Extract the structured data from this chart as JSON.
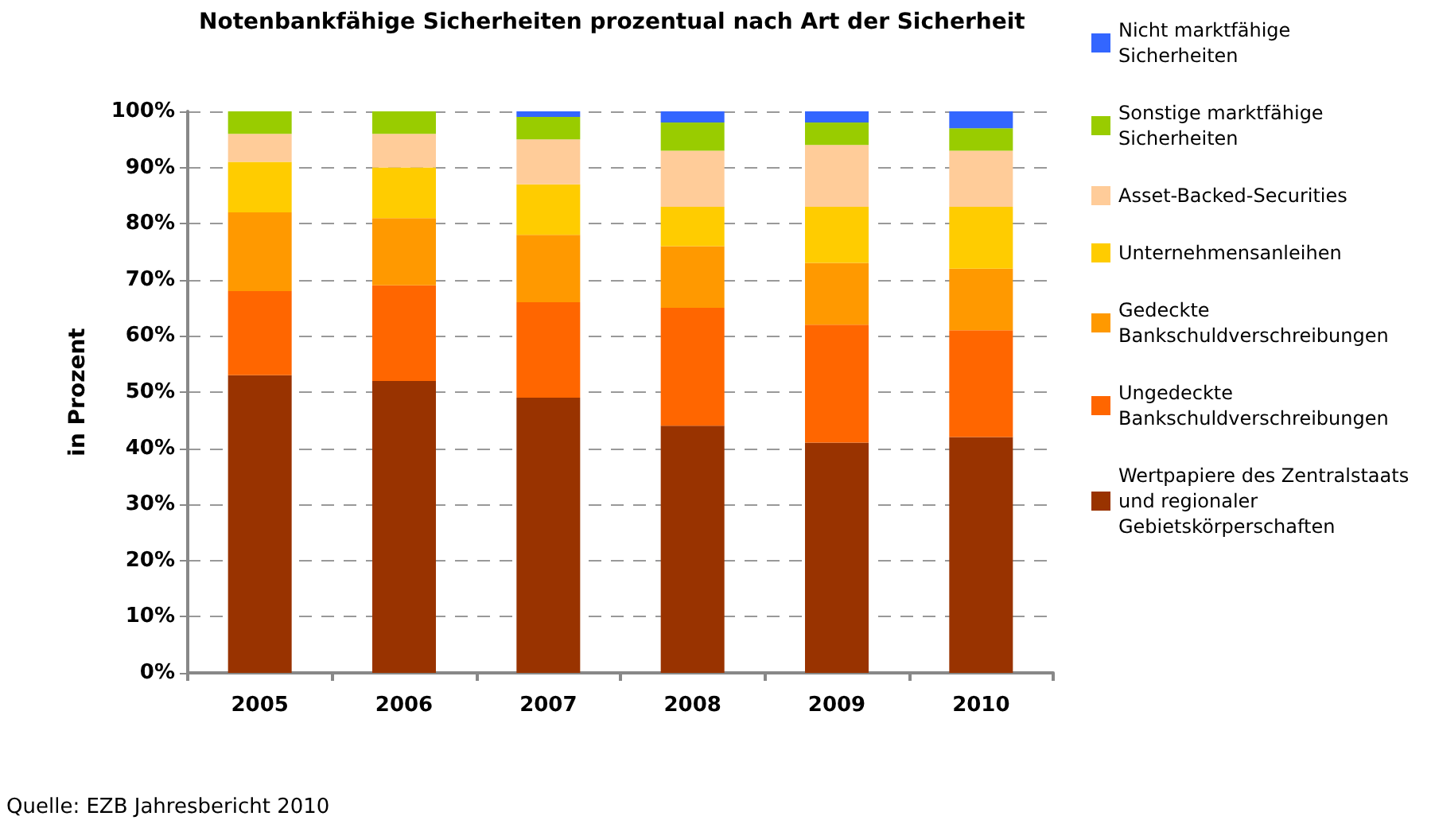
{
  "chart_data": {
    "type": "bar",
    "stacked": true,
    "title": "Notenbankfähige Sicherheiten prozentual nach Art der Sicherheit",
    "ylabel": "in Prozent",
    "categories": [
      "2005",
      "2006",
      "2007",
      "2008",
      "2009",
      "2010"
    ],
    "series": [
      {
        "name": "Wertpapiere des Zentralstaats und regionaler Gebietskörperschaften",
        "color": "#993300",
        "values": [
          53,
          52,
          49,
          44,
          41,
          42
        ]
      },
      {
        "name": "Ungedeckte Bankschuldverschreibungen",
        "color": "#ff6600",
        "values": [
          15,
          17,
          17,
          21,
          21,
          19
        ]
      },
      {
        "name": "Gedeckte Bankschuldverschreibungen",
        "color": "#ff9900",
        "values": [
          14,
          12,
          12,
          11,
          11,
          11
        ]
      },
      {
        "name": "Unternehmensanleihen",
        "color": "#ffcc00",
        "values": [
          9,
          9,
          9,
          7,
          10,
          11
        ]
      },
      {
        "name": "Asset-Backed-Securities",
        "color": "#ffcc99",
        "values": [
          5,
          6,
          8,
          10,
          11,
          10
        ]
      },
      {
        "name": "Sonstige marktfähige Sicherheiten",
        "color": "#99cc00",
        "values": [
          4,
          4,
          4,
          5,
          4,
          4
        ]
      },
      {
        "name": "Nicht marktfähige Sicherheiten",
        "color": "#3366ff",
        "values": [
          0,
          0,
          1,
          2,
          2,
          3
        ]
      }
    ],
    "ylim": [
      0,
      100
    ],
    "yticks": [
      {
        "value": 0,
        "label": "0%"
      },
      {
        "value": 10,
        "label": "10%"
      },
      {
        "value": 20,
        "label": "20%"
      },
      {
        "value": 30,
        "label": "30%"
      },
      {
        "value": 40,
        "label": "40%"
      },
      {
        "value": 50,
        "label": "50%"
      },
      {
        "value": 60,
        "label": "60%"
      },
      {
        "value": 70,
        "label": "70%"
      },
      {
        "value": 80,
        "label": "80%"
      },
      {
        "value": 90,
        "label": "90%"
      },
      {
        "value": 100,
        "label": "100%"
      }
    ],
    "grid": "y",
    "legend": "right",
    "annotations": [
      "Quelle: EZB Jahresbericht 2010"
    ]
  }
}
